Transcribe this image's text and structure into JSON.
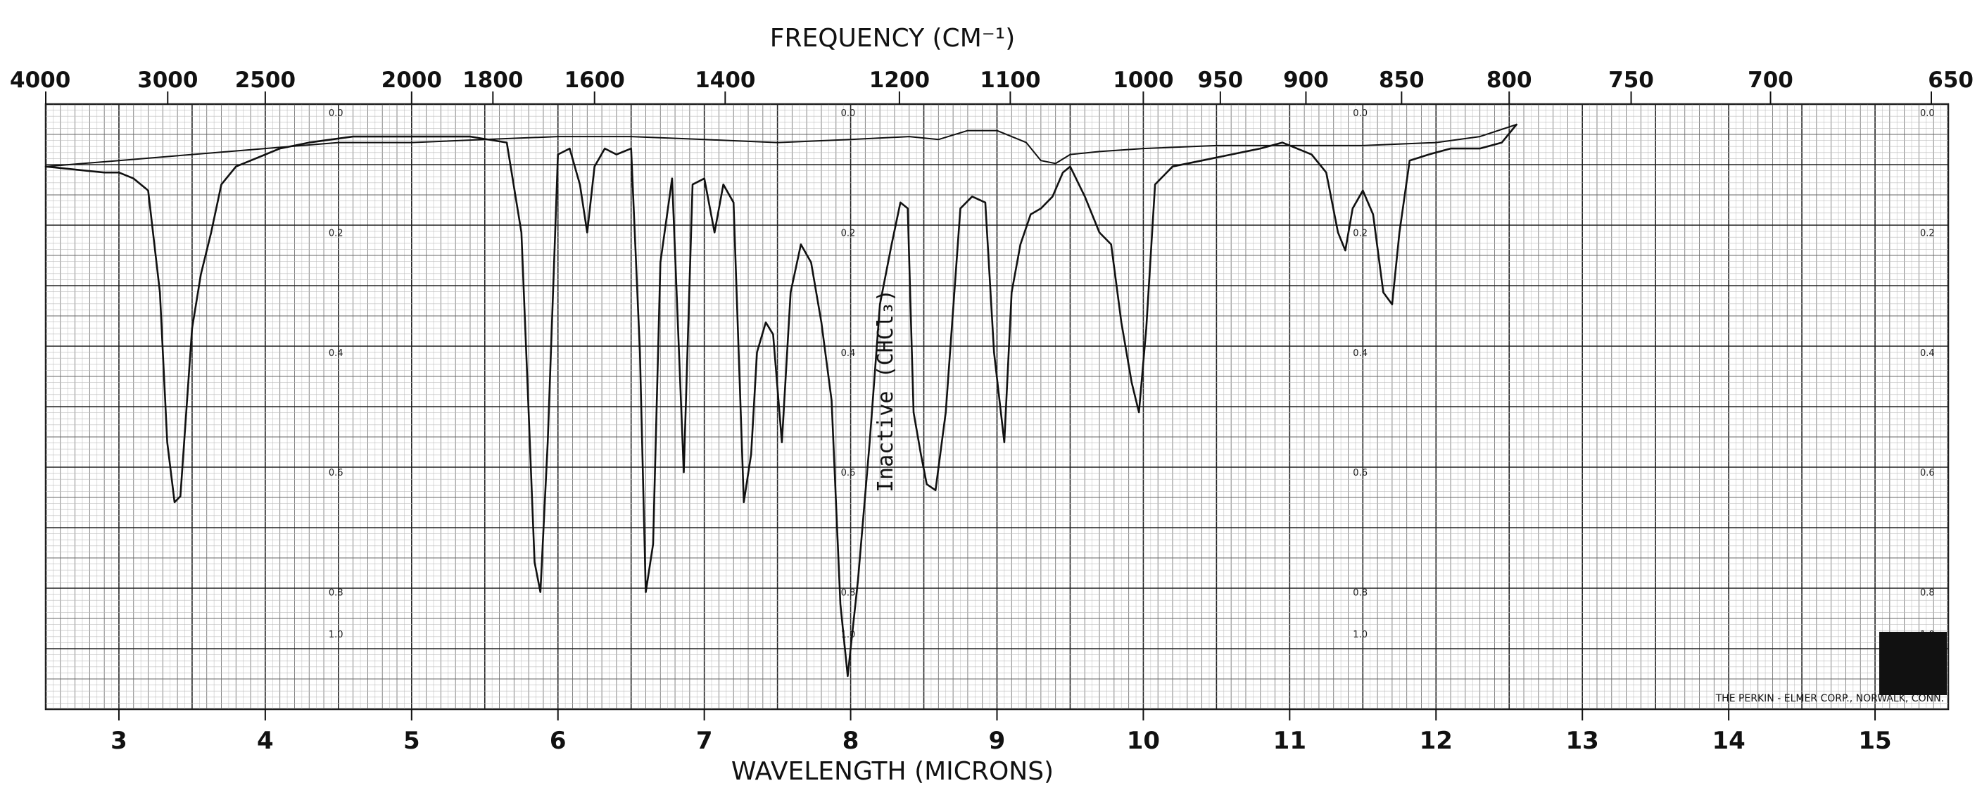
{
  "chart_data": {
    "type": "line",
    "title": "",
    "top_axis_label": "FREQUENCY (CM⁻¹)",
    "bottom_axis_label": "WAVELENGTH (MICRONS)",
    "xlim_microns": [
      2.5,
      15.5
    ],
    "grid": true,
    "frequency_ticks": [
      {
        "label": "4000",
        "value": 4000
      },
      {
        "label": "3000",
        "value": 3000
      },
      {
        "label": "2500",
        "value": 2500
      },
      {
        "label": "2000",
        "value": 2000
      },
      {
        "label": "1800",
        "value": 1800
      },
      {
        "label": "1600",
        "value": 1600
      },
      {
        "label": "1400",
        "value": 1400
      },
      {
        "label": "1200",
        "value": 1200
      },
      {
        "label": "1100",
        "value": 1100
      },
      {
        "label": "1000",
        "value": 1000
      },
      {
        "label": "950",
        "value": 950
      },
      {
        "label": "900",
        "value": 900
      },
      {
        "label": "850",
        "value": 850
      },
      {
        "label": "800",
        "value": 800
      },
      {
        "label": "750",
        "value": 750
      },
      {
        "label": "700",
        "value": 700
      },
      {
        "label": "650",
        "value": 650
      }
    ],
    "wavelength_ticks": [
      "3",
      "4",
      "5",
      "6",
      "7",
      "8",
      "9",
      "10",
      "11",
      "12",
      "13",
      "14",
      "15"
    ],
    "absorbance_scale": [
      {
        "label": "0.0",
        "value": 0.0
      },
      {
        "label": "0.2",
        "value": 0.2
      },
      {
        "label": "0.4",
        "value": 0.4
      },
      {
        "label": "0.6",
        "value": 0.6
      },
      {
        "label": "0.8",
        "value": 0.8
      },
      {
        "label": "1.0",
        "value": 1.0
      },
      {
        "label": "1.5",
        "value": 1.5
      }
    ],
    "absorbance_label_columns_microns": [
      4.5,
      8.0,
      11.5,
      15.5
    ],
    "annotation": "Inactive (CHCl₃)",
    "credit": "THE PERKIN - ELMER CORP., NORWALK, CONN.",
    "series": [
      {
        "role": "sample",
        "x": [
          2.5,
          2.9,
          3.0,
          3.1,
          3.2,
          3.28,
          3.33,
          3.38,
          3.42,
          3.46,
          3.5,
          3.56,
          3.63,
          3.7,
          3.8,
          3.9,
          4.1,
          4.3,
          4.6,
          5.0,
          5.4,
          5.65,
          5.75,
          5.8,
          5.84,
          5.88,
          5.93,
          6.0,
          6.08,
          6.15,
          6.2,
          6.25,
          6.32,
          6.4,
          6.5,
          6.56,
          6.6,
          6.65,
          6.7,
          6.78,
          6.86,
          6.92,
          7.0,
          7.07,
          7.13,
          7.2,
          7.27,
          7.32,
          7.36,
          7.42,
          7.47,
          7.53,
          7.59,
          7.66,
          7.73,
          7.8,
          7.87,
          7.93,
          7.98,
          8.05,
          8.13,
          8.2,
          8.28,
          8.34,
          8.39,
          8.43,
          8.48,
          8.52,
          8.58,
          8.65,
          8.75,
          8.83,
          8.92,
          8.98,
          9.05,
          9.1,
          9.16,
          9.23,
          9.3,
          9.38,
          9.45,
          9.5,
          9.6,
          9.7,
          9.78,
          9.85,
          9.92,
          9.97,
          10.02,
          10.08,
          10.2,
          10.4,
          10.6,
          10.8,
          10.95,
          11.05,
          11.15,
          11.25,
          11.33,
          11.38,
          11.43,
          11.5,
          11.57,
          11.64,
          11.7,
          11.75,
          11.82,
          11.95,
          12.1,
          12.3,
          12.45,
          12.55
        ],
        "y": [
          0.09,
          0.1,
          0.1,
          0.11,
          0.13,
          0.3,
          0.55,
          0.65,
          0.64,
          0.5,
          0.36,
          0.27,
          0.2,
          0.12,
          0.09,
          0.08,
          0.06,
          0.05,
          0.04,
          0.04,
          0.04,
          0.05,
          0.2,
          0.5,
          0.75,
          0.8,
          0.55,
          0.07,
          0.06,
          0.12,
          0.2,
          0.09,
          0.06,
          0.07,
          0.06,
          0.4,
          0.8,
          0.72,
          0.25,
          0.11,
          0.6,
          0.12,
          0.11,
          0.2,
          0.12,
          0.15,
          0.65,
          0.57,
          0.4,
          0.35,
          0.37,
          0.55,
          0.3,
          0.22,
          0.25,
          0.35,
          0.48,
          0.82,
          0.94,
          0.78,
          0.55,
          0.32,
          0.22,
          0.15,
          0.16,
          0.5,
          0.57,
          0.62,
          0.63,
          0.5,
          0.16,
          0.14,
          0.15,
          0.4,
          0.55,
          0.3,
          0.22,
          0.17,
          0.16,
          0.14,
          0.1,
          0.09,
          0.14,
          0.2,
          0.22,
          0.35,
          0.45,
          0.5,
          0.36,
          0.12,
          0.09,
          0.08,
          0.07,
          0.06,
          0.05,
          0.06,
          0.07,
          0.1,
          0.2,
          0.23,
          0.16,
          0.13,
          0.17,
          0.3,
          0.32,
          0.2,
          0.08,
          0.07,
          0.06,
          0.06,
          0.05,
          0.02
        ]
      },
      {
        "role": "reference",
        "x": [
          2.5,
          3.0,
          3.5,
          4.0,
          4.5,
          5.0,
          5.5,
          6.0,
          6.5,
          7.0,
          7.5,
          8.0,
          8.4,
          8.6,
          8.8,
          9.0,
          9.2,
          9.3,
          9.4,
          9.5,
          9.7,
          10.0,
          10.5,
          11.0,
          11.5,
          12.0,
          12.3,
          12.55
        ],
        "y": [
          0.09,
          0.08,
          0.07,
          0.06,
          0.05,
          0.05,
          0.045,
          0.04,
          0.04,
          0.045,
          0.05,
          0.045,
          0.04,
          0.045,
          0.03,
          0.03,
          0.05,
          0.08,
          0.085,
          0.07,
          0.065,
          0.06,
          0.055,
          0.055,
          0.055,
          0.05,
          0.04,
          0.02
        ]
      }
    ]
  }
}
